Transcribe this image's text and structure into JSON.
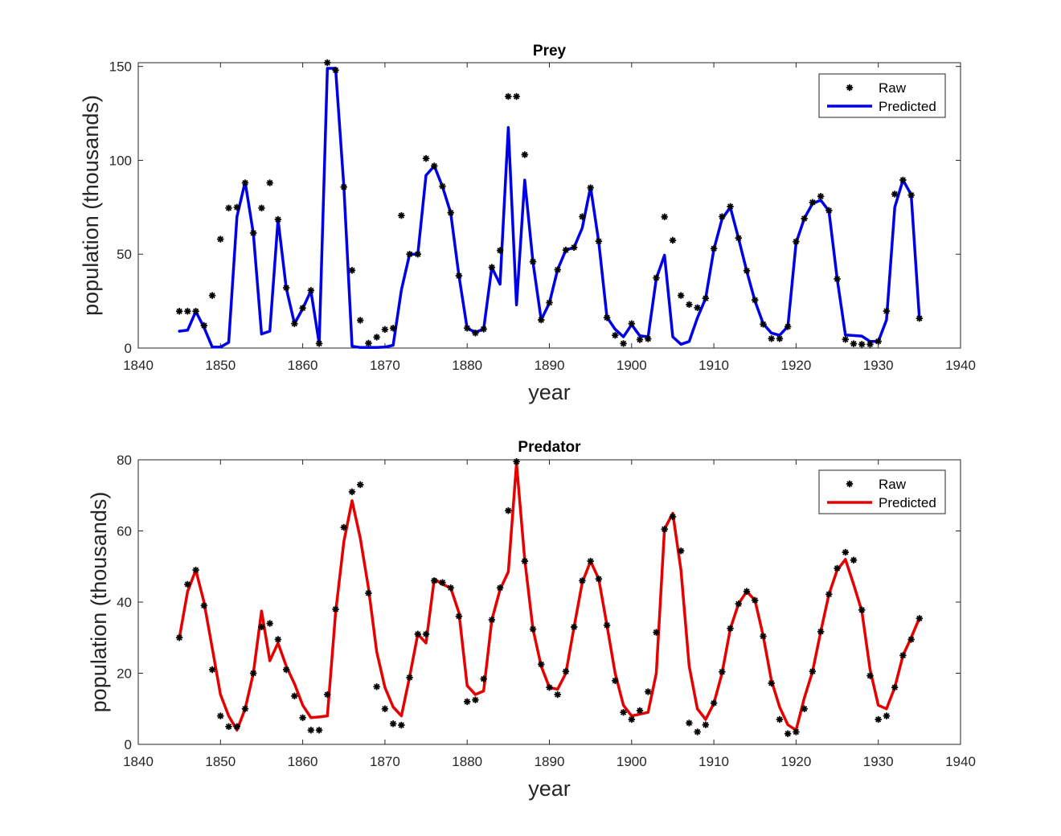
{
  "chart_data": [
    {
      "type": "line",
      "title": "Prey",
      "xlabel": "year",
      "ylabel": "population (thousands)",
      "xlim": [
        1840,
        1940
      ],
      "ylim": [
        0,
        152
      ],
      "xticks": [
        1840,
        1850,
        1860,
        1870,
        1880,
        1890,
        1900,
        1910,
        1920,
        1930,
        1940
      ],
      "yticks": [
        0,
        50,
        100,
        150
      ],
      "grid": false,
      "legend_position": "top-right",
      "line_color": "#0000e6",
      "raw_marker_color": "#000000",
      "series": [
        {
          "name": "Raw",
          "style": "markers",
          "x": [
            1845,
            1846,
            1847,
            1848,
            1849,
            1850,
            1851,
            1852,
            1853,
            1854,
            1855,
            1856,
            1857,
            1858,
            1859,
            1860,
            1861,
            1862,
            1863,
            1864,
            1865,
            1866,
            1867,
            1868,
            1869,
            1870,
            1871,
            1872,
            1873,
            1874,
            1875,
            1876,
            1877,
            1878,
            1879,
            1880,
            1881,
            1882,
            1883,
            1884,
            1885,
            1886,
            1887,
            1888,
            1889,
            1890,
            1891,
            1892,
            1893,
            1894,
            1895,
            1896,
            1897,
            1898,
            1899,
            1900,
            1901,
            1902,
            1903,
            1904,
            1905,
            1906,
            1907,
            1908,
            1909,
            1910,
            1911,
            1912,
            1913,
            1914,
            1915,
            1916,
            1917,
            1918,
            1919,
            1920,
            1921,
            1922,
            1923,
            1924,
            1925,
            1926,
            1927,
            1928,
            1929,
            1930,
            1931,
            1932,
            1933,
            1934,
            1935
          ],
          "y": [
            19.6,
            19.6,
            19.6,
            12,
            28,
            58,
            74.6,
            75,
            88,
            61.3,
            74.6,
            88,
            68.5,
            32.1,
            13,
            21.3,
            30.7,
            2.4,
            152,
            148,
            85.8,
            41.4,
            14.8,
            2.6,
            5.8,
            9.9,
            10.6,
            70.6,
            50,
            50,
            101,
            97,
            86.2,
            72.1,
            38.5,
            10.6,
            8,
            10.1,
            43,
            52,
            134,
            134,
            103,
            46,
            15,
            24.2,
            41.7,
            52.2,
            53.6,
            70,
            85.4,
            56.9,
            16.2,
            6.8,
            2.4,
            13,
            4.5,
            4.9,
            37.4,
            69.9,
            57.4,
            28,
            23.2,
            21.5,
            26.5,
            53,
            70,
            75.4,
            58.6,
            41.2,
            25.6,
            12.7,
            5,
            5,
            11.4,
            56.7,
            69,
            77.6,
            80.8,
            73.3,
            36.8,
            4.6,
            2.3,
            2,
            2,
            3.6,
            19.7,
            82,
            89.5,
            81.5,
            15.8
          ]
        },
        {
          "name": "Predicted",
          "style": "line",
          "x": [
            1845,
            1846,
            1847,
            1848,
            1849,
            1850,
            1851,
            1852,
            1853,
            1854,
            1855,
            1856,
            1857,
            1858,
            1859,
            1860,
            1861,
            1862,
            1863,
            1864,
            1865,
            1866,
            1867,
            1868,
            1869,
            1870,
            1871,
            1872,
            1873,
            1874,
            1875,
            1876,
            1877,
            1878,
            1879,
            1880,
            1881,
            1882,
            1883,
            1884,
            1885,
            1886,
            1887,
            1888,
            1889,
            1890,
            1891,
            1892,
            1893,
            1894,
            1895,
            1896,
            1897,
            1898,
            1899,
            1900,
            1901,
            1902,
            1903,
            1904,
            1905,
            1906,
            1907,
            1908,
            1909,
            1910,
            1911,
            1912,
            1913,
            1914,
            1915,
            1916,
            1917,
            1918,
            1919,
            1920,
            1921,
            1922,
            1923,
            1924,
            1925,
            1926,
            1927,
            1928,
            1929,
            1930,
            1931,
            1932,
            1933,
            1934,
            1935
          ],
          "y": [
            9,
            9.5,
            19.5,
            11,
            0.5,
            0.5,
            3,
            70,
            88.5,
            61,
            7.5,
            9,
            68.5,
            32,
            13,
            21,
            30.5,
            2.5,
            149,
            149,
            86,
            1,
            0.3,
            0.3,
            0.3,
            0.5,
            1.5,
            31,
            50,
            50,
            92,
            97,
            86,
            72,
            38.5,
            10.5,
            8.5,
            10,
            43,
            34,
            117.5,
            23,
            89.5,
            46,
            15,
            24,
            41.7,
            52.2,
            53.6,
            64,
            85.8,
            56.5,
            16.5,
            10,
            6,
            12.5,
            6.5,
            6,
            37,
            49.5,
            6,
            2,
            3.5,
            16,
            26.5,
            52.5,
            68.8,
            75,
            58.5,
            41,
            25,
            13,
            8,
            6.8,
            11.5,
            56,
            69,
            77,
            78.8,
            73,
            37,
            7,
            6.7,
            6.4,
            3.5,
            3.5,
            15,
            75,
            89.5,
            81.8,
            16
          ]
        }
      ]
    },
    {
      "type": "line",
      "title": "Predator",
      "xlabel": "year",
      "ylabel": "population (thousands)",
      "xlim": [
        1840,
        1940
      ],
      "ylim": [
        0,
        80
      ],
      "xticks": [
        1840,
        1850,
        1860,
        1870,
        1880,
        1890,
        1900,
        1910,
        1920,
        1930,
        1940
      ],
      "yticks": [
        0,
        20,
        40,
        60,
        80
      ],
      "grid": false,
      "legend_position": "top-right",
      "line_color": "#e60000",
      "raw_marker_color": "#000000",
      "series": [
        {
          "name": "Raw",
          "style": "markers",
          "x": [
            1845,
            1846,
            1847,
            1848,
            1849,
            1850,
            1851,
            1852,
            1853,
            1854,
            1855,
            1856,
            1857,
            1858,
            1859,
            1860,
            1861,
            1862,
            1863,
            1864,
            1865,
            1866,
            1867,
            1868,
            1869,
            1870,
            1871,
            1872,
            1873,
            1874,
            1875,
            1876,
            1877,
            1878,
            1879,
            1880,
            1881,
            1882,
            1883,
            1884,
            1885,
            1886,
            1887,
            1888,
            1889,
            1890,
            1891,
            1892,
            1893,
            1894,
            1895,
            1896,
            1897,
            1898,
            1899,
            1900,
            1901,
            1902,
            1903,
            1904,
            1905,
            1906,
            1907,
            1908,
            1909,
            1910,
            1911,
            1912,
            1913,
            1914,
            1915,
            1916,
            1917,
            1918,
            1919,
            1920,
            1921,
            1922,
            1923,
            1924,
            1925,
            1926,
            1927,
            1928,
            1929,
            1930,
            1931,
            1932,
            1933,
            1934,
            1935
          ],
          "y": [
            30,
            45,
            49,
            39,
            21,
            8,
            5,
            5,
            10,
            20,
            33,
            34,
            29.5,
            21,
            13.6,
            7.5,
            4,
            4,
            14,
            38,
            61,
            71,
            73,
            42.5,
            16.2,
            10,
            5.8,
            5.4,
            18.8,
            31,
            31,
            46,
            45.5,
            44,
            36,
            12,
            12.5,
            18.4,
            35,
            44,
            65.7,
            79.5,
            51.5,
            32.4,
            22.5,
            16,
            14,
            20.5,
            33,
            46,
            51.5,
            46.5,
            33.5,
            17.9,
            9,
            7,
            9.5,
            14.8,
            31.5,
            60.5,
            64,
            54.4,
            6,
            3.5,
            5.5,
            11.6,
            20.4,
            32.6,
            39.5,
            43,
            40.5,
            30.4,
            17.2,
            7,
            3,
            3.5,
            10,
            20.5,
            31.7,
            42.2,
            49.5,
            54,
            51.8,
            37.8,
            19.3,
            7,
            8,
            16,
            25,
            29.5,
            35.4
          ]
        },
        {
          "name": "Predicted",
          "style": "line",
          "x": [
            1845,
            1846,
            1847,
            1848,
            1849,
            1850,
            1851,
            1852,
            1853,
            1854,
            1855,
            1856,
            1857,
            1858,
            1859,
            1860,
            1861,
            1862,
            1863,
            1864,
            1865,
            1866,
            1867,
            1868,
            1869,
            1870,
            1871,
            1872,
            1873,
            1874,
            1875,
            1876,
            1877,
            1878,
            1879,
            1880,
            1881,
            1882,
            1883,
            1884,
            1885,
            1886,
            1887,
            1888,
            1889,
            1890,
            1891,
            1892,
            1893,
            1894,
            1895,
            1896,
            1897,
            1898,
            1899,
            1900,
            1901,
            1902,
            1903,
            1904,
            1905,
            1906,
            1907,
            1908,
            1909,
            1910,
            1911,
            1912,
            1913,
            1914,
            1915,
            1916,
            1917,
            1918,
            1919,
            1920,
            1921,
            1922,
            1923,
            1924,
            1925,
            1926,
            1927,
            1928,
            1929,
            1930,
            1931,
            1932,
            1933,
            1934,
            1935
          ],
          "y": [
            30,
            43,
            49,
            40,
            27,
            14,
            8,
            4,
            10,
            20,
            37.5,
            23.5,
            28.5,
            22,
            17,
            11,
            7.5,
            7.7,
            8,
            37,
            57,
            68.5,
            58,
            44,
            26,
            16,
            10.5,
            8,
            19,
            31,
            28.5,
            46.5,
            45,
            44,
            37,
            16.5,
            14,
            15,
            35,
            43.5,
            48.5,
            79,
            52,
            32.5,
            22,
            16,
            15.5,
            20,
            33,
            45.5,
            51.5,
            46.5,
            33.5,
            20,
            11,
            8,
            8.5,
            9,
            20,
            60.5,
            65,
            49,
            22,
            10,
            7,
            11.5,
            20,
            32.5,
            39.5,
            43,
            40.5,
            30.5,
            18,
            10.5,
            5.5,
            4,
            13,
            20.5,
            31.7,
            42.2,
            49,
            52,
            45,
            37.5,
            21,
            11,
            10,
            16,
            25,
            30,
            35.5
          ]
        }
      ]
    }
  ],
  "legend": {
    "raw_label": "Raw",
    "predicted_label": "Predicted"
  }
}
